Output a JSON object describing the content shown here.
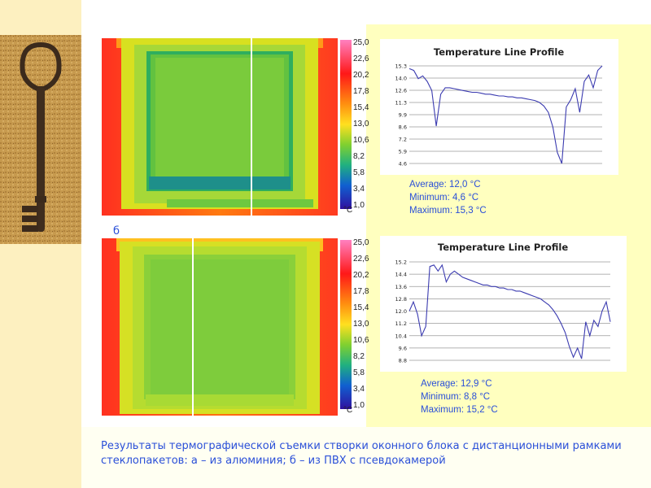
{
  "label_b": "б",
  "scale": {
    "ticks": [
      "25,0",
      "22,6",
      "20,2",
      "17,8",
      "15,4",
      "13,0",
      "10,6",
      "8,2",
      "5,8",
      "3,4",
      "1,0"
    ],
    "unit": "°C"
  },
  "colors": {
    "text_blue": "#2a4fd8",
    "profile_line": "#3b3bb0",
    "left_band": "#fdf0c0",
    "right_band": "#ffffbf"
  },
  "profile_a": {
    "title": "Temperature Line Profile",
    "stats": {
      "average": "Average: 12,0 °C",
      "minimum": "Minimum: 4,6 °C",
      "maximum": "Maximum: 15,3 °C"
    }
  },
  "profile_b": {
    "title": "Temperature Line Profile",
    "stats": {
      "average": "Average: 12,9 °C",
      "minimum": "Minimum: 8,8 °C",
      "maximum": "Maximum: 15,2 °C"
    }
  },
  "caption": "Результаты термографической съемки створки оконного блока с дистанционными рамками стеклопакетов: а – из алюминия; б – из ПВХ с псевдокамерой",
  "chart_data": [
    {
      "type": "line",
      "title": "Temperature Line Profile",
      "ylim": [
        4.6,
        15.3
      ],
      "yticks": [
        "15.3",
        "14.0",
        "12.6",
        "11.3",
        "9.9",
        "8.6",
        "7.2",
        "5.9",
        "4.6"
      ],
      "series": [
        {
          "values": [
            15.0,
            14.8,
            13.9,
            14.2,
            13.6,
            12.6,
            8.7,
            12.2,
            12.9,
            12.9,
            12.8,
            12.7,
            12.6,
            12.5,
            12.4,
            12.4,
            12.3,
            12.2,
            12.2,
            12.1,
            12.0,
            12.0,
            11.9,
            11.9,
            11.8,
            11.8,
            11.7,
            11.6,
            11.5,
            11.3,
            10.9,
            10.2,
            8.6,
            5.8,
            4.6,
            10.8,
            11.6,
            12.8,
            10.2,
            13.6,
            14.3,
            12.9,
            14.8,
            15.3
          ]
        }
      ]
    },
    {
      "type": "line",
      "title": "Temperature Line Profile",
      "ylim": [
        8.8,
        15.2
      ],
      "yticks": [
        "15.2",
        "14.4",
        "13.6",
        "12.8",
        "12.0",
        "11.2",
        "10.4",
        "9.6",
        "8.8"
      ],
      "series": [
        {
          "values": [
            12.0,
            12.6,
            11.8,
            10.4,
            11.0,
            14.9,
            15.0,
            14.6,
            15.0,
            13.9,
            14.4,
            14.6,
            14.4,
            14.2,
            14.1,
            14.0,
            13.9,
            13.8,
            13.7,
            13.7,
            13.6,
            13.6,
            13.5,
            13.5,
            13.4,
            13.4,
            13.3,
            13.3,
            13.2,
            13.1,
            13.0,
            12.9,
            12.8,
            12.6,
            12.4,
            12.1,
            11.7,
            11.2,
            10.6,
            9.7,
            9.0,
            9.6,
            8.9,
            11.3,
            10.4,
            11.4,
            11.0,
            12.0,
            12.6,
            11.3
          ]
        }
      ]
    }
  ]
}
